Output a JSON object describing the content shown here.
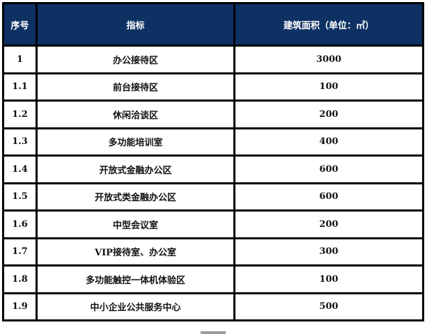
{
  "table": {
    "headers": [
      "序号",
      "指标",
      "建筑面积（单位：㎡）"
    ],
    "rows": [
      {
        "no": "1",
        "item": "办公接待区",
        "area": "3000"
      },
      {
        "no": "1.1",
        "item": "前台接待区",
        "area": "100"
      },
      {
        "no": "1.2",
        "item": "休闲洽谈区",
        "area": "200"
      },
      {
        "no": "1.3",
        "item": "多功能培训室",
        "area": "400"
      },
      {
        "no": "1.4",
        "item": "开放式金融办公区",
        "area": "600"
      },
      {
        "no": "1.5",
        "item": "开放式类金融办公区",
        "area": "600"
      },
      {
        "no": "1.6",
        "item": "中型会议室",
        "area": "200"
      },
      {
        "no": "1.7",
        "item": "VIP接待室、办公室",
        "area": "300"
      },
      {
        "no": "1.8",
        "item": "多功能触控一体机体验区",
        "area": "100"
      },
      {
        "no": "1.9",
        "item": "中小企业公共服务中心",
        "area": "500"
      }
    ]
  },
  "colors": {
    "header_bg": "#0d3163",
    "header_text": "#ffffff",
    "border": "#000000"
  }
}
